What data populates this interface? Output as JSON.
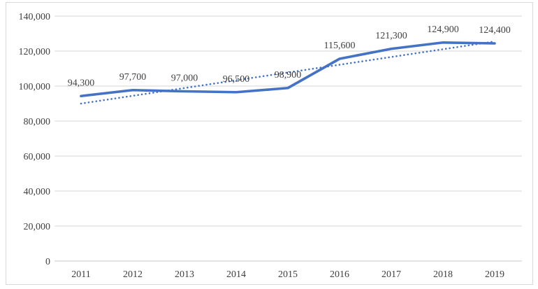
{
  "chart_data": {
    "type": "line",
    "title": "",
    "xlabel": "",
    "ylabel": "",
    "categories": [
      "2011",
      "2012",
      "2013",
      "2014",
      "2015",
      "2016",
      "2017",
      "2018",
      "2019"
    ],
    "series": [
      {
        "name": "annual-values",
        "style": "solid",
        "values": [
          94300,
          97700,
          97000,
          96500,
          98900,
          115600,
          121300,
          124900,
          124400
        ],
        "labels": [
          "94,300",
          "97,700",
          "97,000",
          "96,500",
          "98,900",
          "115,600",
          "121,300",
          "124,900",
          "124,400"
        ]
      }
    ],
    "trendline": {
      "name": "linear-trendline",
      "style": "dotted",
      "start_value": 90000,
      "end_value": 125500
    },
    "y_axis": {
      "min": 0,
      "max": 140000,
      "tick_step": 20000,
      "tick_labels": [
        "0",
        "20,000",
        "40,000",
        "60,000",
        "80,000",
        "100,000",
        "120,000",
        "140,000"
      ]
    },
    "grid": true,
    "legend": false
  },
  "colors": {
    "series_line": "#4472C4",
    "trendline": "#4472C4",
    "gridline": "#D6D6D6",
    "axis_line": "#C8C8C8",
    "text": "#404040",
    "frame_border": "#D9D9D9",
    "background": "#FFFFFF"
  }
}
